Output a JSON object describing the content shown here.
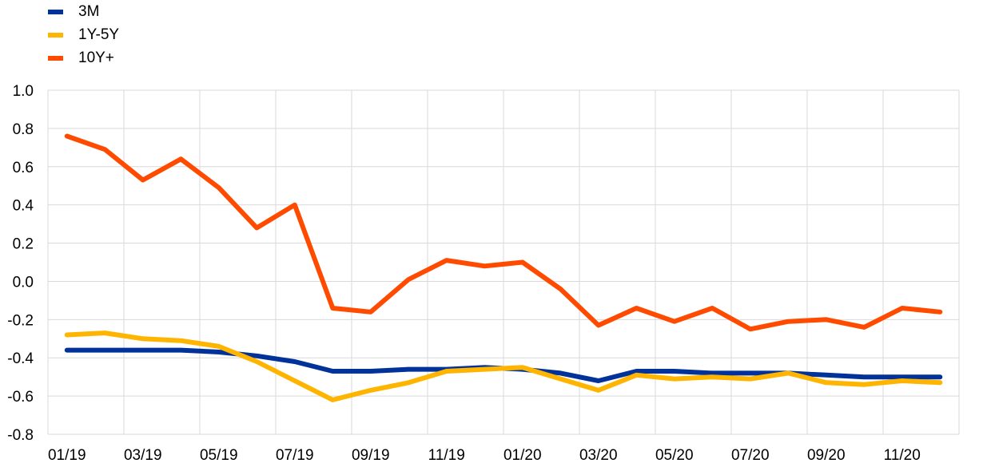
{
  "chart_data": {
    "type": "line",
    "title": "",
    "xlabel": "",
    "ylabel": "",
    "ylim": [
      -0.8,
      1.0
    ],
    "yticks": [
      "1.0",
      "0.8",
      "0.6",
      "0.4",
      "0.2",
      "0.0",
      "-0.2",
      "-0.4",
      "-0.6",
      "-0.8"
    ],
    "yticks_values": [
      1.0,
      0.8,
      0.6,
      0.4,
      0.2,
      0.0,
      -0.2,
      -0.4,
      -0.6,
      -0.8
    ],
    "grid": true,
    "legend_position": "top-left",
    "x": [
      "01/19",
      "02/19",
      "03/19",
      "04/19",
      "05/19",
      "06/19",
      "07/19",
      "08/19",
      "09/19",
      "10/19",
      "11/19",
      "12/19",
      "01/20",
      "02/20",
      "03/20",
      "04/20",
      "05/20",
      "06/20",
      "07/20",
      "08/20",
      "09/20",
      "10/20",
      "11/20",
      "12/20"
    ],
    "xtick_labels": [
      "01/19",
      "03/19",
      "05/19",
      "07/19",
      "09/19",
      "11/19",
      "01/20",
      "03/20",
      "05/20",
      "07/20",
      "09/20",
      "11/20"
    ],
    "series": [
      {
        "name": "3M",
        "color": "#003299",
        "values": [
          -0.36,
          -0.36,
          -0.36,
          -0.36,
          -0.37,
          -0.39,
          -0.42,
          -0.47,
          -0.47,
          -0.46,
          -0.46,
          -0.45,
          -0.46,
          -0.48,
          -0.52,
          -0.47,
          -0.47,
          -0.48,
          -0.48,
          -0.48,
          -0.49,
          -0.5,
          -0.5,
          -0.5
        ]
      },
      {
        "name": "1Y-5Y",
        "color": "#FFB400",
        "values": [
          -0.28,
          -0.27,
          -0.3,
          -0.31,
          -0.34,
          -0.42,
          -0.52,
          -0.62,
          -0.57,
          -0.53,
          -0.47,
          -0.46,
          -0.45,
          -0.51,
          -0.57,
          -0.49,
          -0.51,
          -0.5,
          -0.51,
          -0.48,
          -0.53,
          -0.54,
          -0.52,
          -0.53
        ]
      },
      {
        "name": "10Y+",
        "color": "#FF4B00",
        "values": [
          0.76,
          0.69,
          0.53,
          0.64,
          0.49,
          0.28,
          0.4,
          -0.14,
          -0.16,
          0.01,
          0.11,
          0.08,
          0.1,
          -0.04,
          -0.23,
          -0.14,
          -0.21,
          -0.14,
          -0.25,
          -0.21,
          -0.2,
          -0.24,
          -0.14,
          -0.16
        ]
      }
    ]
  }
}
